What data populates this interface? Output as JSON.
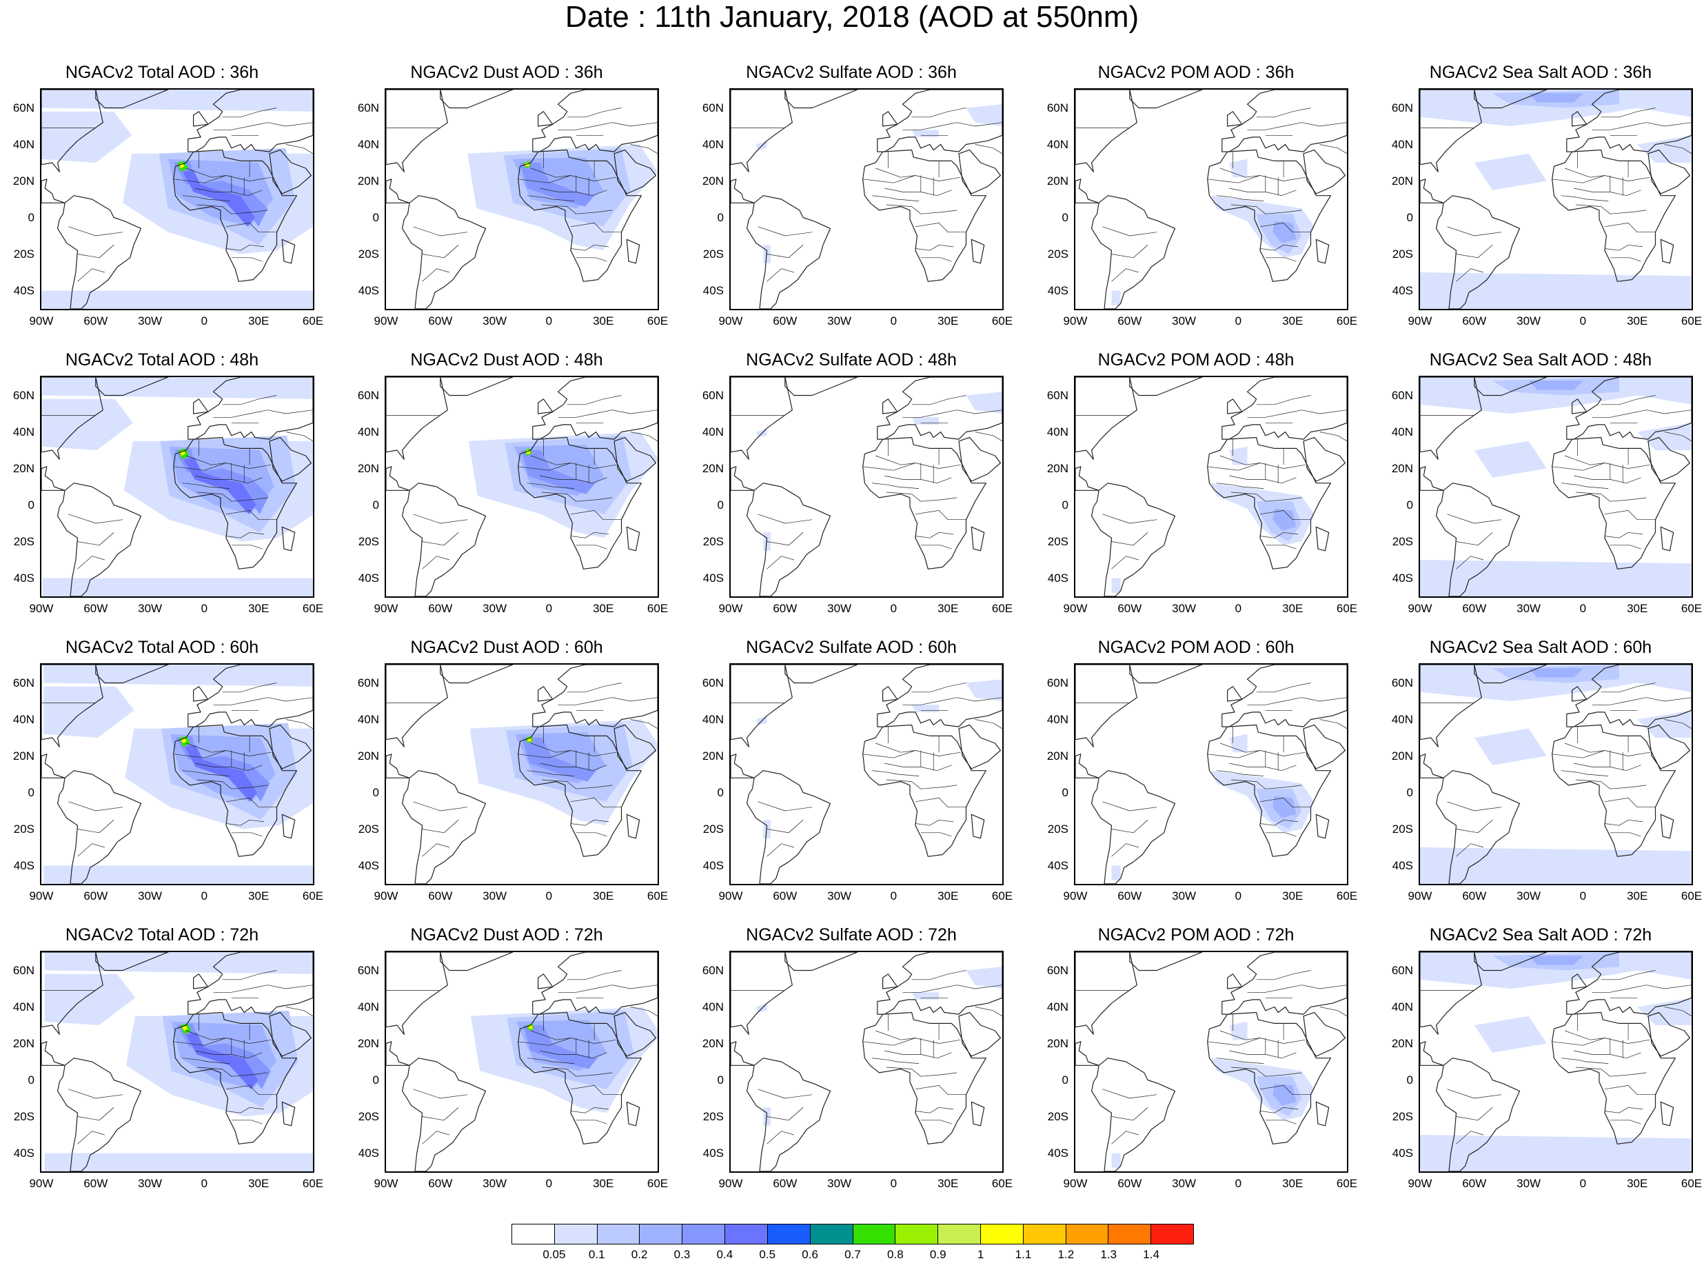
{
  "page_title": "Date : 11th January, 2018 (AOD at 550nm)",
  "lat_ticks": [
    "60N",
    "40N",
    "20N",
    "0",
    "20S",
    "40S"
  ],
  "lon_ticks": [
    "90W",
    "60W",
    "30W",
    "0",
    "30E",
    "60E"
  ],
  "columns": [
    {
      "key": "total",
      "titles": [
        "NGACv2 Total AOD : 36h",
        "NGACv2 Total AOD : 48h",
        "NGACv2 Total AOD : 60h",
        "NGACv2 Total AOD : 72h"
      ]
    },
    {
      "key": "dust",
      "titles": [
        "NGACv2 Dust AOD : 36h",
        "NGACv2 Dust AOD : 48h",
        "NGACv2 Dust AOD : 60h",
        "NGACv2 Dust AOD : 72h"
      ]
    },
    {
      "key": "sulfate",
      "titles": [
        "NGACv2 Sulfate AOD : 36h",
        "NGACv2 Sulfate AOD : 48h",
        "NGACv2 Sulfate AOD : 60h",
        "NGACv2 Sulfate AOD : 72h"
      ]
    },
    {
      "key": "pom",
      "titles": [
        "NGACv2 POM AOD : 36h",
        "NGACv2 POM AOD : 48h",
        "NGACv2 POM AOD : 60h",
        "NGACv2 POM AOD : 72h"
      ]
    },
    {
      "key": "seasalt",
      "titles": [
        "NGACv2 Sea Salt AOD : 36h",
        "NGACv2 Sea Salt AOD : 48h",
        "NGACv2 Sea Salt AOD : 60h",
        "NGACv2 Sea Salt  AOD : 72h"
      ]
    }
  ],
  "colorbar": {
    "colors": [
      "#ffffff",
      "#d8e2ff",
      "#bccbff",
      "#9fb2ff",
      "#8597ff",
      "#6b74ff",
      "#1a5dff",
      "#009090",
      "#33e000",
      "#99f000",
      "#c8f050",
      "#ffff00",
      "#ffc800",
      "#ffa000",
      "#ff7800",
      "#ff2010"
    ],
    "labels": [
      "0.05",
      "0.1",
      "0.2",
      "0.3",
      "0.4",
      "0.5",
      "0.6",
      "0.7",
      "0.8",
      "0.9",
      "1",
      "1.1",
      "1.2",
      "1.3",
      "1.4"
    ]
  }
}
